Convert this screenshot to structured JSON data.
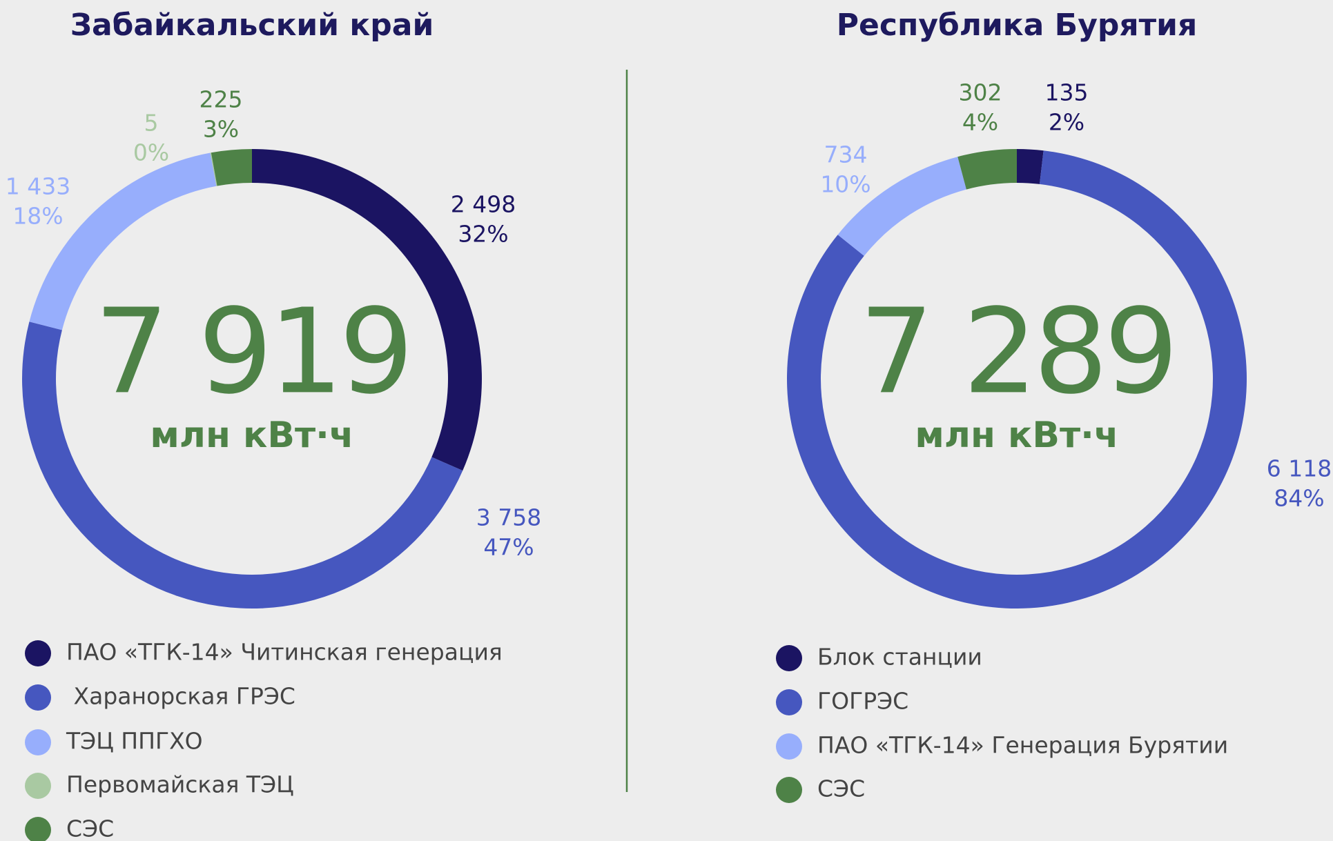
{
  "chart_data": [
    {
      "type": "donut",
      "title": "Забайкальский край",
      "total": 7919,
      "total_label": "7 919",
      "unit": "млн кВт·ч",
      "categories": [
        "ПАО «ТГК-14» Читинская генерация",
        " Харанорская ГРЭС",
        "ТЭЦ ППГХО",
        "Первомайская ТЭЦ",
        "СЭС"
      ],
      "values": [
        2498,
        3758,
        1433,
        5,
        225
      ],
      "value_labels": [
        "2 498",
        "3 758",
        "1 433",
        "5",
        "225"
      ],
      "percents": [
        32,
        47,
        18,
        0,
        3
      ],
      "percent_labels": [
        "32%",
        "47%",
        "18%",
        "0%",
        "3%"
      ],
      "colors": [
        "#1b1462",
        "#4657bf",
        "#97aefc",
        "#a9c9a2",
        "#4e8247"
      ]
    },
    {
      "type": "donut",
      "title": "Республика Бурятия",
      "total": 7289,
      "total_label": "7 289",
      "unit": "млн кВт·ч",
      "categories": [
        "Блок станции",
        "ГОГРЭС",
        "ПАО «ТГК-14» Генерация Бурятии",
        "СЭС"
      ],
      "values": [
        135,
        6118,
        734,
        302
      ],
      "value_labels": [
        "135",
        "6 118",
        "734",
        "302"
      ],
      "percents": [
        2,
        84,
        10,
        4
      ],
      "percent_labels": [
        "2%",
        "84%",
        "10%",
        "4%"
      ],
      "colors": [
        "#1b1462",
        "#4657bf",
        "#97aefc",
        "#4e8247"
      ]
    }
  ]
}
